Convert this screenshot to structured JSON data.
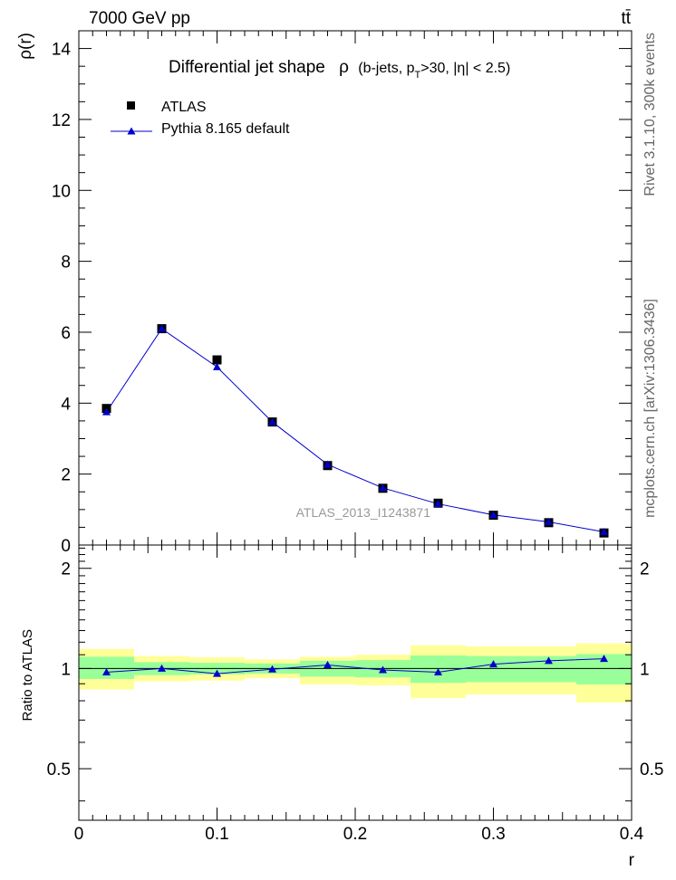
{
  "header": {
    "energy_label": "7000 GeV pp",
    "process_label": "tt̄"
  },
  "side_labels": {
    "rivet": "Rivet 3.1.10,  300k events",
    "mcplots": "mcplots.cern.ch [arXiv:1306.3436]"
  },
  "watermark": "ATLAS_2013_I1243871",
  "chart_data": {
    "type": "scatter",
    "title_main": "Differential jet shape",
    "title_rho": "ρ",
    "title_cuts_a": "(b-jets, p",
    "title_cuts_sub": "T",
    "title_cuts_b": ">30, |η| < 2.5)",
    "xlabel": "r",
    "ylabel_top": "ρ(r)",
    "ylabel_bottom": "Ratio to ATLAS",
    "xlim": [
      0,
      0.4
    ],
    "ylim_top": [
      0,
      14.5
    ],
    "ylim_bottom": [
      0.35,
      2.35
    ],
    "top_yticks": [
      "0",
      "2",
      "4",
      "6",
      "8",
      "10",
      "12",
      "14"
    ],
    "x_tick_labels": [
      "0",
      "0.1",
      "0.2",
      "0.3",
      "0.4"
    ],
    "ratio_tick_labels": [
      "0.5",
      "1",
      "2"
    ],
    "legend": {
      "data_label": "ATLAS",
      "mc_label": "Pythia 8.165 default"
    },
    "bins": [
      [
        0.0,
        0.04
      ],
      [
        0.04,
        0.08
      ],
      [
        0.08,
        0.12
      ],
      [
        0.12,
        0.16
      ],
      [
        0.16,
        0.2
      ],
      [
        0.2,
        0.24
      ],
      [
        0.24,
        0.28
      ],
      [
        0.28,
        0.32
      ],
      [
        0.32,
        0.36
      ],
      [
        0.36,
        0.4
      ]
    ],
    "x": [
      0.02,
      0.06,
      0.1,
      0.14,
      0.18,
      0.22,
      0.26,
      0.3,
      0.34,
      0.38
    ],
    "series": [
      {
        "name": "ATLAS",
        "values": [
          3.85,
          6.1,
          5.22,
          3.47,
          2.24,
          1.6,
          1.18,
          0.84,
          0.63,
          0.34
        ]
      },
      {
        "name": "Pythia 8.165 default",
        "values": [
          3.75,
          6.1,
          5.02,
          3.47,
          2.27,
          1.61,
          1.16,
          0.85,
          0.65,
          0.37
        ]
      }
    ],
    "ratio_mc": [
      0.975,
      1.0,
      0.965,
      0.995,
      1.025,
      0.99,
      0.975,
      1.03,
      1.055,
      1.07
    ],
    "ratio_band_inner": [
      [
        0.93,
        1.085
      ],
      [
        0.955,
        1.045
      ],
      [
        0.96,
        1.04
      ],
      [
        0.965,
        1.035
      ],
      [
        0.945,
        1.055
      ],
      [
        0.94,
        1.06
      ],
      [
        0.905,
        1.095
      ],
      [
        0.91,
        1.09
      ],
      [
        0.91,
        1.09
      ],
      [
        0.895,
        1.105
      ]
    ],
    "ratio_band_outer": [
      [
        0.865,
        1.145
      ],
      [
        0.915,
        1.09
      ],
      [
        0.92,
        1.08
      ],
      [
        0.935,
        1.065
      ],
      [
        0.895,
        1.085
      ],
      [
        0.89,
        1.1
      ],
      [
        0.815,
        1.175
      ],
      [
        0.835,
        1.165
      ],
      [
        0.835,
        1.165
      ],
      [
        0.79,
        1.19
      ]
    ],
    "colors": {
      "data": "#000000",
      "mc": "#0000cc",
      "band_inner": "#99ff99",
      "band_outer": "#ffff99",
      "watermark": "#999999",
      "side": "#666666"
    }
  }
}
